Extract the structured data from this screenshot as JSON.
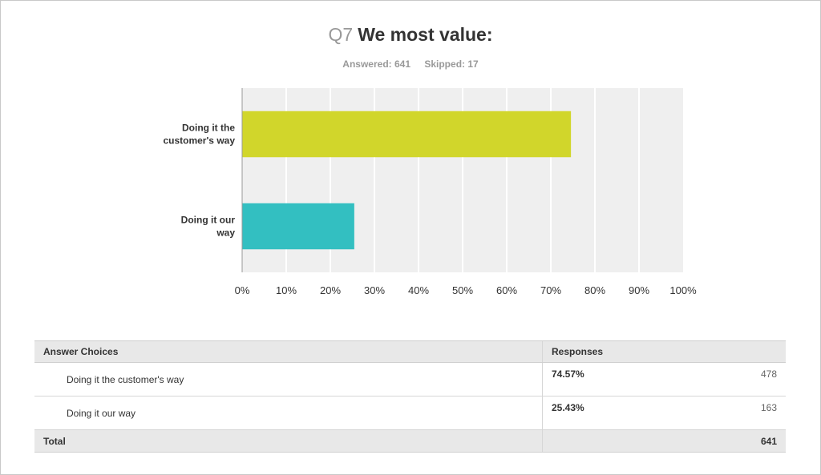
{
  "header": {
    "question_number": "Q7",
    "question_text": "We most value:",
    "answered": "Answered: 641",
    "skipped": "Skipped: 17"
  },
  "chart_data": {
    "type": "bar",
    "orientation": "horizontal",
    "categories": [
      "Doing it the customer's way",
      "Doing it our way"
    ],
    "category_label_lines": [
      [
        "Doing it the",
        "customer's way"
      ],
      [
        "Doing it our",
        "way"
      ]
    ],
    "values": [
      74.57,
      25.43
    ],
    "colors": [
      "#d1d62b",
      "#33bfc1"
    ],
    "xlim": [
      0,
      100
    ],
    "xticks": [
      "0%",
      "10%",
      "20%",
      "30%",
      "40%",
      "50%",
      "60%",
      "70%",
      "80%",
      "90%",
      "100%"
    ],
    "grid": true,
    "plot_background": "#efefef"
  },
  "table": {
    "headers": [
      "Answer Choices",
      "Responses"
    ],
    "rows": [
      {
        "choice": "Doing it the customer's way",
        "percent": "74.57%",
        "count": "478"
      },
      {
        "choice": "Doing it our way",
        "percent": "25.43%",
        "count": "163"
      }
    ],
    "total_label": "Total",
    "total_count": "641"
  }
}
